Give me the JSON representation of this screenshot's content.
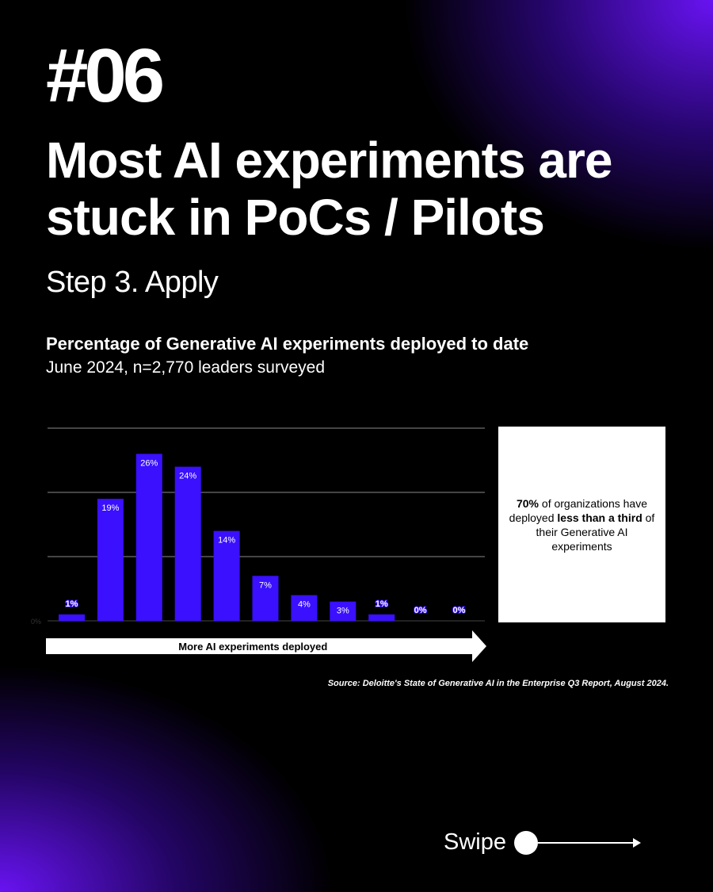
{
  "slide": {
    "number": "#06",
    "headline": "Most AI experiments are stuck in PoCs / Pilots",
    "step": "Step 3. Apply"
  },
  "chart_data": {
    "type": "bar",
    "title": "Percentage of Generative AI experiments deployed to date",
    "subtitle": "June 2024, n=2,770 leaders surveyed",
    "xlabel": "More AI experiments deployed",
    "ylabel": "",
    "y_tick_labels": [
      "0%"
    ],
    "values": [
      1,
      19,
      26,
      24,
      14,
      7,
      4,
      3,
      1,
      0,
      0
    ],
    "data_labels": [
      "1%",
      "19%",
      "26%",
      "24%",
      "14%",
      "7%",
      "4%",
      "3%",
      "1%",
      "0%",
      "0%"
    ],
    "ylim": [
      0,
      30
    ],
    "grid": true,
    "bar_color": "#3a10ff"
  },
  "callout": {
    "pct": "70%",
    "text1": " of organizations have deployed ",
    "bold": "less than a third",
    "text2": " of their Generative AI experiments"
  },
  "source": "Source: Deloitte's State of Generative AI in the Enterprise Q3 Report, August 2024.",
  "swipe": {
    "label": "Swipe"
  },
  "colors": {
    "accent": "#6a14ff",
    "bar": "#3a10ff",
    "background": "#000000"
  }
}
